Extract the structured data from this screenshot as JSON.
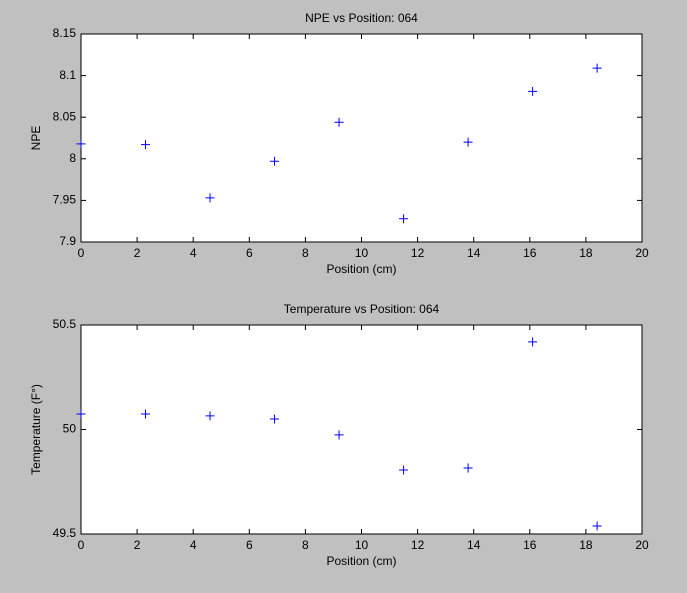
{
  "chart_data": [
    {
      "type": "scatter",
      "title": "NPE vs Position: 064",
      "xlabel": "Position (cm)",
      "ylabel": "NPE",
      "x": [
        0,
        2.3,
        4.6,
        6.9,
        9.2,
        11.5,
        13.8,
        16.1,
        18.4
      ],
      "values": [
        8.018,
        8.017,
        7.953,
        7.997,
        8.044,
        7.928,
        8.02,
        8.081,
        8.109
      ],
      "color": "#0000ff",
      "marker": "+",
      "xlim": [
        0,
        20
      ],
      "xticks": [
        0,
        2,
        4,
        6,
        8,
        10,
        12,
        14,
        16,
        18,
        20
      ],
      "ylim": [
        7.9,
        8.15
      ],
      "yticks": [
        7.9,
        7.95,
        8,
        8.05,
        8.1,
        8.15
      ]
    },
    {
      "type": "scatter",
      "title": "Temperature vs Position: 064",
      "xlabel": "Position (cm)",
      "ylabel": "Temperature (F°)",
      "x": [
        0,
        2.3,
        4.6,
        6.9,
        9.2,
        11.5,
        13.8,
        16.1,
        18.4
      ],
      "values": [
        50.074,
        50.074,
        50.065,
        50.05,
        49.974,
        49.806,
        49.816,
        50.419,
        49.538
      ],
      "color": "#0000ff",
      "marker": "+",
      "xlim": [
        0,
        20
      ],
      "xticks": [
        0,
        2,
        4,
        6,
        8,
        10,
        12,
        14,
        16,
        18,
        20
      ],
      "ylim": [
        49.5,
        50.5
      ],
      "yticks": [
        49.5,
        50,
        50.5
      ]
    }
  ]
}
